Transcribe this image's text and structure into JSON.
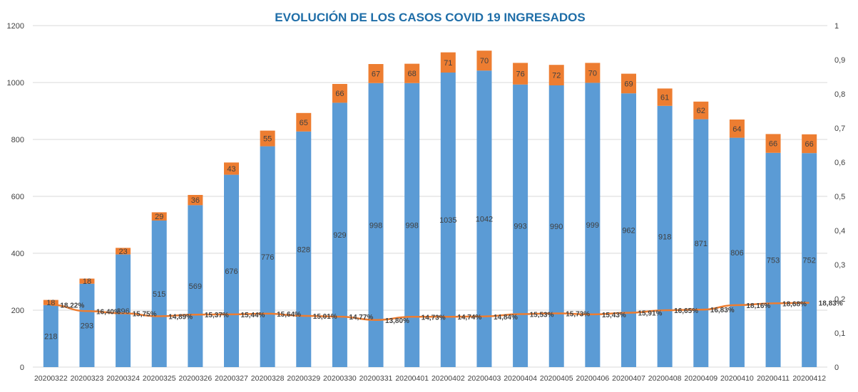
{
  "chart_data": {
    "type": "bar",
    "stacked": true,
    "title": "EVOLUCIÓN DE LOS CASOS COVID 19 INGRESADOS",
    "categories": [
      "20200322",
      "20200323",
      "20200324",
      "20200325",
      "20200326",
      "20200327",
      "20200328",
      "20200329",
      "20200330",
      "20200331",
      "20200401",
      "20200402",
      "20200403",
      "20200404",
      "20200405",
      "20200406",
      "20200407",
      "20200408",
      "20200409",
      "20200410",
      "20200411",
      "20200412"
    ],
    "series": [
      {
        "values": [
          218,
          293,
          396,
          515,
          569,
          676,
          776,
          828,
          929,
          998,
          998,
          1035,
          1042,
          993,
          990,
          999,
          962,
          918,
          871,
          806,
          753,
          752
        ],
        "color": "#5b9bd5",
        "type": "bar"
      },
      {
        "values": [
          18,
          18,
          23,
          29,
          36,
          43,
          55,
          65,
          66,
          67,
          68,
          71,
          70,
          76,
          72,
          70,
          69,
          61,
          62,
          64,
          66,
          66
        ],
        "color": "#ed7d31",
        "type": "bar"
      },
      {
        "values": [
          0.1822,
          0.164,
          0.1575,
          0.1489,
          0.1537,
          0.1544,
          0.1564,
          0.1501,
          0.1477,
          0.138,
          0.1473,
          0.1474,
          0.1484,
          0.1553,
          0.1573,
          0.1543,
          0.1591,
          0.1665,
          0.1683,
          0.1816,
          0.1868,
          0.1883
        ],
        "labels": [
          "18,22%",
          "16,40%",
          "15,75%",
          "14,89%",
          "15,37%",
          "15,44%",
          "15,64%",
          "15,01%",
          "14,77%",
          "13,80%",
          "14,73%",
          "14,74%",
          "14,84%",
          "15,53%",
          "15,73%",
          "15,43%",
          "15,91%",
          "16,65%",
          "16,83%",
          "18,16%",
          "18,68%",
          "18,83%"
        ],
        "color": "#ed7d31",
        "type": "line",
        "axis": "secondary"
      }
    ],
    "ylim": [
      0,
      1200
    ],
    "yticks": [
      "0",
      "200",
      "400",
      "600",
      "800",
      "1000",
      "1200"
    ],
    "y2lim": [
      0,
      1
    ],
    "y2ticks": [
      "0",
      "0,1",
      "0,2",
      "0,3",
      "0,4",
      "0,5",
      "0,6",
      "0,7",
      "0,8",
      "0,9",
      "1"
    ],
    "grid": true,
    "legend": "none"
  }
}
